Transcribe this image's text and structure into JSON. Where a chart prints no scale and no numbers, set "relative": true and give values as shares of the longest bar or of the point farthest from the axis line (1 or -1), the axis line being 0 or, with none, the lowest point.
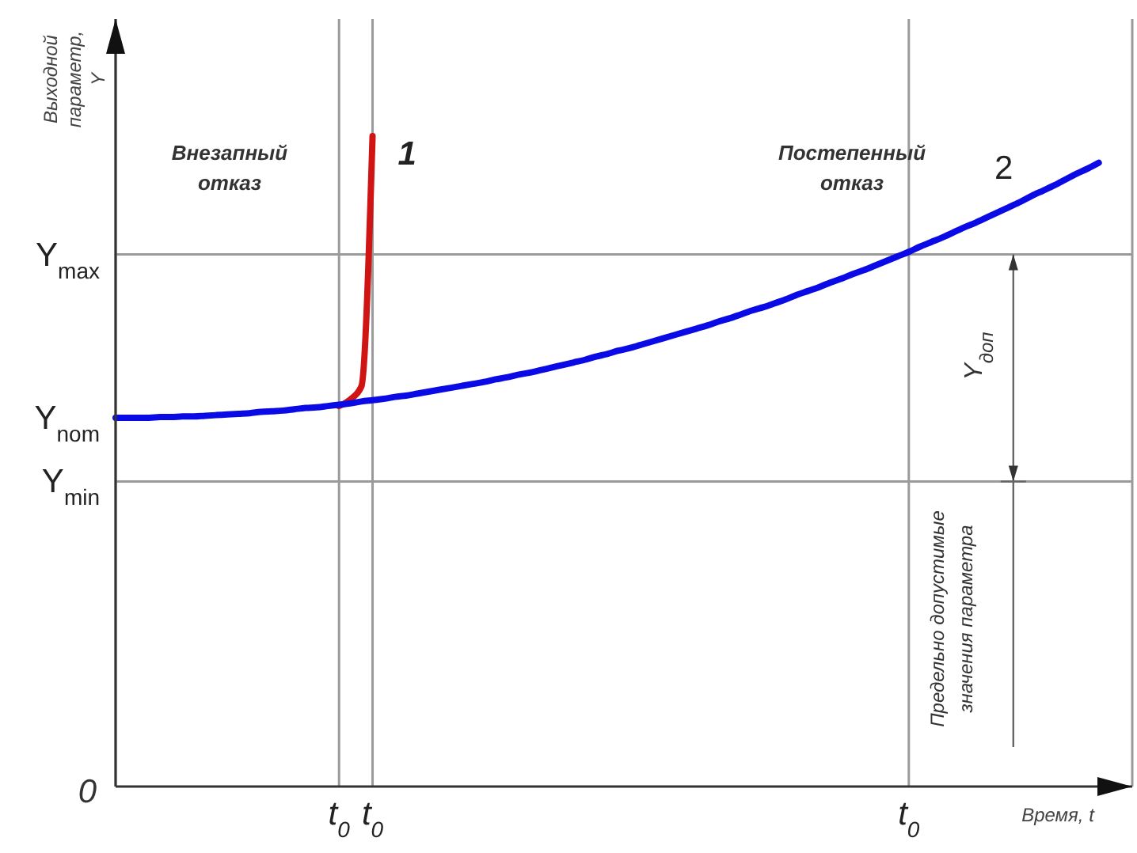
{
  "chart_data": {
    "type": "line",
    "relative": true,
    "ylabel": "Выходной параметр, Y",
    "xlabel": "Время, t",
    "grid": "x",
    "categories": [
      null,
      null,
      null,
      null,
      null,
      null,
      null,
      null,
      null,
      null,
      null,
      null,
      null,
      null,
      null,
      null,
      null,
      null,
      null,
      null,
      "t$_{0}$",
      null,
      null,
      "t$_{0}$",
      null,
      null,
      null,
      null,
      null,
      null,
      null,
      null,
      null,
      null,
      null,
      null,
      null,
      null,
      null,
      null,
      null,
      null,
      null,
      null,
      null,
      null,
      null,
      null,
      null,
      null,
      null,
      null,
      null,
      null,
      null,
      null,
      null,
      null,
      null,
      null,
      null,
      null,
      null,
      null,
      null,
      null,
      null,
      null,
      null,
      null,
      null,
      "t$_{0}$",
      null,
      null,
      null,
      null,
      null,
      null,
      null,
      null,
      null,
      null,
      null,
      null,
      null,
      null,
      null,
      null,
      null,
      null,
      null,
      null
    ],
    "series": [
      {
        "name": "1",
        "color": "#d01414",
        "values": [
          null,
          null,
          null,
          null,
          null,
          null,
          null,
          null,
          null,
          null,
          null,
          null,
          null,
          null,
          null,
          null,
          null,
          null,
          null,
          null,
          0.585,
          0.595,
          0.615,
          1.0,
          null,
          null,
          null,
          null,
          null,
          null,
          null,
          null,
          null,
          null,
          null,
          null,
          null,
          null,
          null,
          null,
          null,
          null,
          null,
          null,
          null,
          null,
          null,
          null,
          null,
          null,
          null,
          null,
          null,
          null,
          null,
          null,
          null,
          null,
          null,
          null,
          null,
          null,
          null,
          null,
          null,
          null,
          null,
          null,
          null,
          null,
          null,
          null,
          null,
          null,
          null,
          null,
          null,
          null,
          null,
          null,
          null,
          null,
          null,
          null,
          null,
          null,
          null,
          null,
          null,
          null,
          null,
          null
        ]
      },
      {
        "name": "2",
        "color": "#0a0ae6",
        "values": [
          0.567,
          0.567,
          0.567,
          0.567,
          0.568,
          0.568,
          0.569,
          0.569,
          0.57,
          0.571,
          0.572,
          0.573,
          0.574,
          0.576,
          0.577,
          0.578,
          0.58,
          0.582,
          0.583,
          0.585,
          0.587,
          0.589,
          0.592,
          0.594,
          0.596,
          0.599,
          0.601,
          0.604,
          0.607,
          0.61,
          0.613,
          0.616,
          0.619,
          0.622,
          0.626,
          0.629,
          0.633,
          0.636,
          0.64,
          0.644,
          0.648,
          0.652,
          0.656,
          0.661,
          0.665,
          0.67,
          0.674,
          0.679,
          0.684,
          0.689,
          0.694,
          0.699,
          0.704,
          0.709,
          0.715,
          0.72,
          0.726,
          0.732,
          0.737,
          0.743,
          0.749,
          0.756,
          0.762,
          0.768,
          0.775,
          0.781,
          0.788,
          0.794,
          0.801,
          0.808,
          0.815,
          0.822,
          0.83,
          0.837,
          0.844,
          0.852,
          0.86,
          0.867,
          0.875,
          0.883,
          0.891,
          0.899,
          0.908,
          0.916,
          0.924,
          0.933,
          0.942,
          0.95,
          0.959,
          null,
          null,
          null
        ]
      }
    ],
    "ref_lines": [
      {
        "axis": "y",
        "value": 0.818,
        "label": "Y$_{max}$",
        "color": "#9a9a9a"
      },
      {
        "axis": "y",
        "value": 0.469,
        "label": "Y$_{min}$",
        "color": "#9a9a9a"
      }
    ],
    "annotations": [
      "Внезапный отказ",
      "Постепенный отказ",
      "Предельно допустимые значения параметра",
      "Y$_{доп}$",
      "Y$_{nom}$",
      "0"
    ]
  }
}
